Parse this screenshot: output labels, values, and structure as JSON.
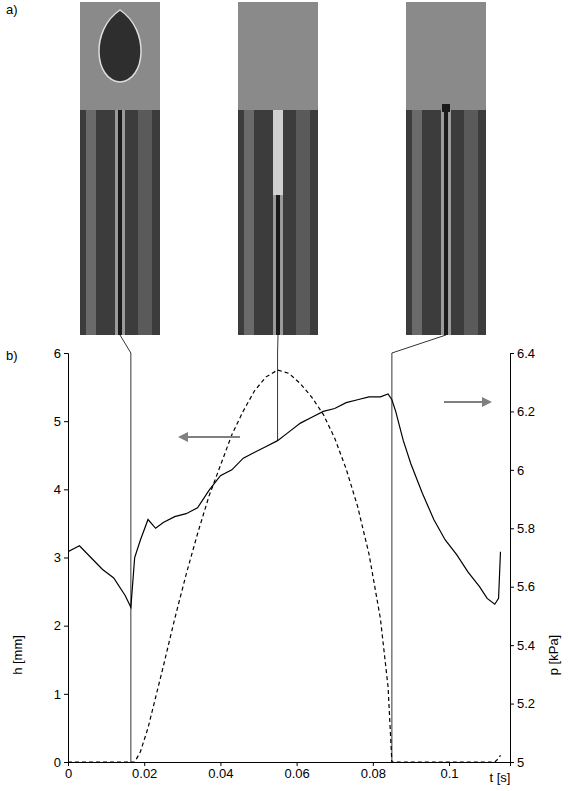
{
  "chart_data": {
    "type": "line",
    "panel_labels": [
      "a)",
      "b)"
    ],
    "xlabel": "t [s]",
    "ylabel": "h [mm]",
    "y2label": "p [kPa]",
    "x": [
      0,
      0.003,
      0.006,
      0.009,
      0.012,
      0.015,
      0.0165,
      0.0175,
      0.019,
      0.021,
      0.023,
      0.025,
      0.028,
      0.031,
      0.034,
      0.037,
      0.04,
      0.043,
      0.046,
      0.049,
      0.052,
      0.055,
      0.058,
      0.061,
      0.064,
      0.067,
      0.07,
      0.073,
      0.076,
      0.079,
      0.082,
      0.084,
      0.085,
      0.086,
      0.088,
      0.09,
      0.093,
      0.096,
      0.099,
      0.102,
      0.105,
      0.108,
      0.11,
      0.112,
      0.113,
      0.1135
    ],
    "series": [
      {
        "color": "#000000",
        "line_style": "dashed",
        "values": [
          0,
          0,
          0,
          0,
          0,
          0,
          0,
          0,
          0.15,
          0.5,
          0.95,
          1.4,
          2.1,
          2.75,
          3.35,
          3.9,
          4.35,
          4.8,
          5.15,
          5.45,
          5.65,
          5.75,
          5.7,
          5.55,
          5.35,
          5.1,
          4.75,
          4.3,
          3.75,
          3.05,
          2.1,
          1.1,
          0,
          0,
          0,
          0,
          0,
          0,
          0,
          0,
          0,
          0,
          0,
          0,
          0.05,
          0.1
        ]
      },
      {
        "color": "#000000",
        "line_style": "solid",
        "axis": "y2",
        "values": [
          5.72,
          5.74,
          5.7,
          5.66,
          5.63,
          5.57,
          5.53,
          5.7,
          5.76,
          5.83,
          5.8,
          5.82,
          5.84,
          5.85,
          5.87,
          5.93,
          5.98,
          6.0,
          6.04,
          6.06,
          6.08,
          6.1,
          6.13,
          6.16,
          6.18,
          6.2,
          6.21,
          6.23,
          6.24,
          6.25,
          6.25,
          6.26,
          6.24,
          6.2,
          6.1,
          6.02,
          5.92,
          5.83,
          5.76,
          5.71,
          5.65,
          5.6,
          5.56,
          5.54,
          5.56,
          5.72
        ]
      }
    ],
    "marked_times": [
      0.0165,
      0.055,
      0.085
    ],
    "xlim": [
      0,
      0.116
    ],
    "xticks": [
      0,
      0.02,
      0.04,
      0.06,
      0.08,
      0.1
    ],
    "ylim": [
      0,
      6
    ],
    "yticks": [
      0,
      1,
      2,
      3,
      4,
      5,
      6
    ],
    "y2lim": [
      5,
      6.4
    ],
    "y2ticks": [
      5,
      5.2,
      5.4,
      5.6,
      5.8,
      6,
      6.2,
      6.4
    ],
    "grid": false
  }
}
